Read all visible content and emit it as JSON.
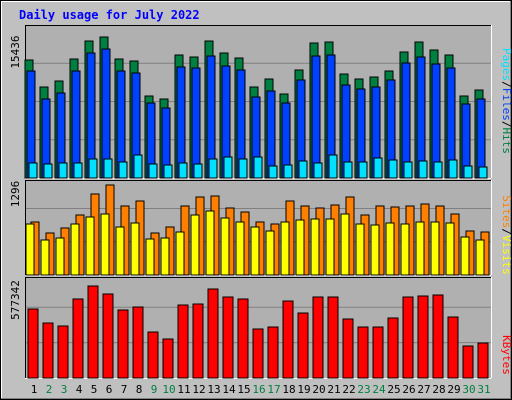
{
  "title": "Daily usage for July 2022",
  "colors": {
    "background": "#C0C0C0",
    "plot_background": "#B0B0B0",
    "title": "#0000FF",
    "hits": "#008040",
    "files": "#0040FF",
    "pages": "#00E0FF",
    "visits": "#FFFF00",
    "sites": "#FF8000",
    "kbytes": "#FF0000",
    "day_weekday": "#000000",
    "day_weekend": "#008040"
  },
  "panels": {
    "top": {
      "max_label": "15436",
      "legend": [
        {
          "text": "Pages",
          "color": "#00E0FF"
        },
        {
          "text": "/",
          "color": "#000000"
        },
        {
          "text": "Files",
          "color": "#0040FF"
        },
        {
          "text": "/",
          "color": "#000000"
        },
        {
          "text": "Hits",
          "color": "#008040"
        }
      ]
    },
    "middle": {
      "max_label": "1296",
      "legend": [
        {
          "text": "Sites",
          "color": "#FF8000"
        },
        {
          "text": "/",
          "color": "#000000"
        },
        {
          "text": "Visits",
          "color": "#FFFF00"
        }
      ]
    },
    "bottom": {
      "max_label": "577342",
      "legend": [
        {
          "text": "KBytes",
          "color": "#FF0000"
        }
      ]
    }
  },
  "chart_data": {
    "type": "bar",
    "title": "Daily usage for July 2022",
    "categories": [
      "1",
      "2",
      "3",
      "4",
      "5",
      "6",
      "7",
      "8",
      "9",
      "10",
      "11",
      "12",
      "13",
      "14",
      "15",
      "16",
      "17",
      "18",
      "19",
      "20",
      "21",
      "22",
      "23",
      "24",
      "25",
      "26",
      "27",
      "28",
      "29",
      "30",
      "31"
    ],
    "weekend_days": [
      2,
      3,
      9,
      10,
      16,
      17,
      23,
      24,
      30,
      31
    ],
    "panels": [
      {
        "name": "hits/files/pages",
        "max": 15436,
        "series": [
          {
            "name": "Hits",
            "values": [
              12260,
              9460,
              10110,
              12360,
              14270,
              14720,
              12440,
              12190,
              8570,
              8280,
              12840,
              12660,
              14240,
              12990,
              12490,
              9510,
              10370,
              8810,
              11280,
              14030,
              14180,
              10840,
              10310,
              10540,
              11200,
              13190,
              14160,
              13380,
              12780,
              8560,
              9230
            ]
          },
          {
            "name": "Files",
            "values": [
              11160,
              8290,
              8860,
              11130,
              13050,
              13440,
              11160,
              10960,
              7790,
              7330,
              11590,
              11500,
              12710,
              11670,
              11260,
              8410,
              9040,
              7850,
              10200,
              12770,
              12850,
              9690,
              9240,
              9480,
              10210,
              12020,
              12620,
              11850,
              11460,
              7670,
              8200
            ]
          },
          {
            "name": "Pages",
            "values": [
              1600,
              1470,
              1540,
              1580,
              1950,
              1940,
              1650,
              2430,
              1490,
              1370,
              1560,
              1460,
              2000,
              2230,
              1930,
              2180,
              1250,
              1350,
              1820,
              1520,
              2370,
              1650,
              1710,
              2040,
              1880,
              1720,
              1740,
              1640,
              1880,
              1300,
              1180
            ]
          }
        ]
      },
      {
        "name": "sites/visits",
        "max": 1296,
        "series": [
          {
            "name": "Sites",
            "values": [
              770,
              610,
              680,
              860,
              1160,
              1300,
              990,
              1070,
              600,
              690,
              990,
              1130,
              1140,
              960,
              900,
              760,
              740,
              1060,
              1000,
              960,
              1010,
              1130,
              860,
              1000,
              980,
              1000,
              1020,
              1000,
              880,
              640,
              620
            ]
          },
          {
            "name": "Visits",
            "values": [
              730,
              510,
              530,
              740,
              830,
              880,
              690,
              750,
              520,
              530,
              620,
              870,
              920,
              820,
              770,
              690,
              630,
              770,
              790,
              800,
              810,
              880,
              730,
              720,
              750,
              740,
              760,
              770,
              750,
              540,
              510
            ]
          }
        ]
      },
      {
        "name": "kbytes",
        "max": 577342,
        "series": [
          {
            "name": "KBytes",
            "values": [
              415150,
              333360,
              312510,
              473480,
              553520,
              506480,
              409660,
              427390,
              277690,
              232540,
              437990,
              444950,
              535690,
              485600,
              477270,
              297580,
              308740,
              460190,
              392530,
              487910,
              487060,
              356150,
              303950,
              306500,
              358640,
              485260,
              490170,
              502070,
              365450,
              190110,
              212490
            ]
          }
        ]
      }
    ]
  }
}
